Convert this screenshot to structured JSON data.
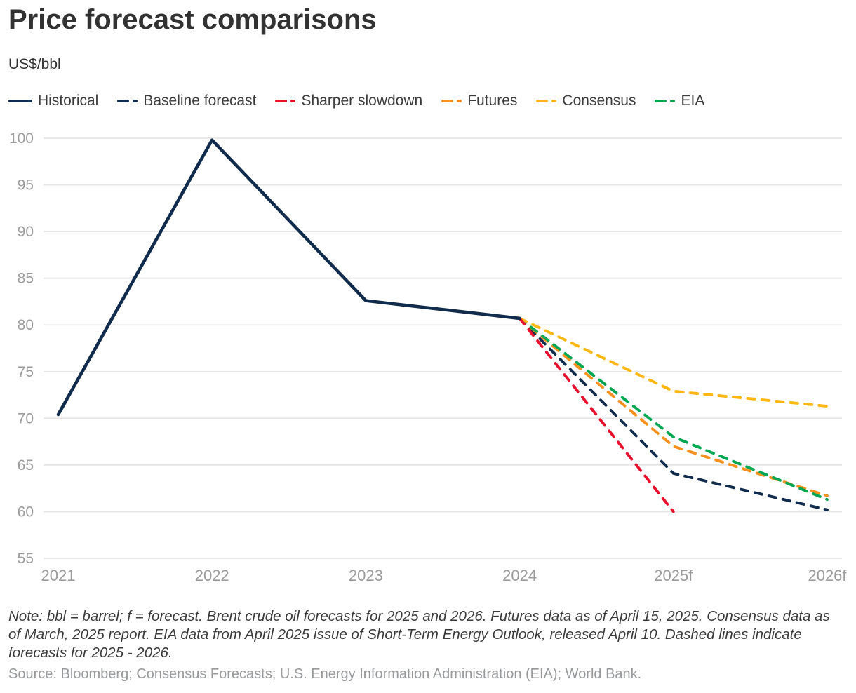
{
  "header": {
    "title": "Price forecast comparisons",
    "subtitle": "US$/bbl"
  },
  "chart_data": {
    "type": "line",
    "title": "Price forecast comparisons",
    "ylabel": "US$/bbl",
    "xlabel": "",
    "x_categories": [
      "2021",
      "2022",
      "2023",
      "2024",
      "2025f",
      "2026f"
    ],
    "x_numeric": [
      2021,
      2022,
      2023,
      2024,
      2025,
      2026
    ],
    "xlim": [
      2021,
      2026
    ],
    "ylim": [
      55,
      100
    ],
    "yticks": [
      55,
      60,
      65,
      70,
      75,
      80,
      85,
      90,
      95,
      100
    ],
    "grid": "horizontal",
    "legend_position": "top",
    "colors": {
      "grid": "#e6e6e6",
      "axis_text": "#9b9b9b",
      "navy": "#102b4c",
      "red": "#e8112d",
      "orange": "#f6911e",
      "gold": "#fdb713",
      "green": "#00a651"
    },
    "series": [
      {
        "name": "Historical",
        "color": "#102b4c",
        "dashed": false,
        "x": [
          2021,
          2022,
          2023,
          2024
        ],
        "y": [
          70.4,
          99.8,
          82.6,
          80.7
        ]
      },
      {
        "name": "Baseline forecast",
        "color": "#102b4c",
        "dashed": true,
        "x": [
          2024,
          2025,
          2026
        ],
        "y": [
          80.7,
          64.1,
          60.2
        ]
      },
      {
        "name": "Sharper slowdown",
        "color": "#e8112d",
        "dashed": true,
        "x": [
          2024,
          2025
        ],
        "y": [
          80.7,
          60.0
        ]
      },
      {
        "name": "Futures",
        "color": "#f6911e",
        "dashed": true,
        "x": [
          2024,
          2025,
          2026
        ],
        "y": [
          80.7,
          67.0,
          61.7
        ]
      },
      {
        "name": "Consensus",
        "color": "#fdb713",
        "dashed": true,
        "x": [
          2024,
          2025,
          2026
        ],
        "y": [
          80.7,
          72.9,
          71.3
        ]
      },
      {
        "name": "EIA",
        "color": "#00a651",
        "dashed": true,
        "x": [
          2024,
          2025,
          2026
        ],
        "y": [
          80.7,
          68.0,
          61.3
        ]
      }
    ]
  },
  "footer": {
    "note": "Note: bbl = barrel; f = forecast. Brent crude oil forecasts for 2025 and 2026. Futures data as of April 15, 2025. Consensus data as of March, 2025 report. EIA data from April 2025 issue of Short-Term Energy Outlook, released April 10. Dashed lines indicate forecasts for 2025 - 2026.",
    "source": "Source: Bloomberg; Consensus Forecasts; U.S. Energy Information Administration (EIA); World Bank."
  }
}
